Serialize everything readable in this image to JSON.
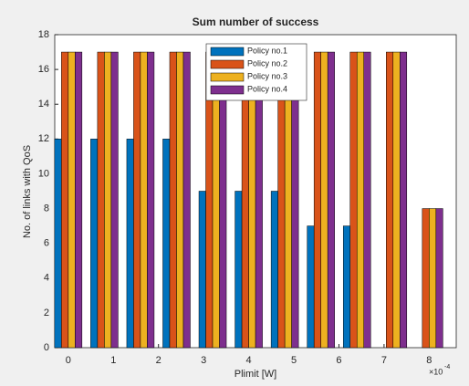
{
  "chart_data": {
    "type": "bar",
    "title": "Sum number of success",
    "xlabel": "Plimit [W]",
    "ylabel": "No. of links with QoS",
    "x_exponent": {
      "base": "×10",
      "power": "-4"
    },
    "x": [
      0,
      0.8,
      1.6,
      2.4,
      3.2,
      4.0,
      4.8,
      5.6,
      6.4,
      7.2,
      8.0
    ],
    "series": [
      {
        "name": "Policy no.1",
        "color": "#0072bd",
        "values": [
          12,
          12,
          12,
          12,
          9,
          9,
          9,
          7,
          7,
          0,
          0
        ]
      },
      {
        "name": "Policy no.2",
        "color": "#d95319",
        "values": [
          17,
          17,
          17,
          17,
          17,
          17,
          17,
          17,
          17,
          17,
          8
        ]
      },
      {
        "name": "Policy no.3",
        "color": "#edb120",
        "values": [
          17,
          17,
          17,
          17,
          17,
          17,
          17,
          17,
          17,
          17,
          8
        ]
      },
      {
        "name": "Policy no.4",
        "color": "#7e2f8e",
        "values": [
          17,
          17,
          17,
          17,
          17,
          17,
          17,
          17,
          17,
          17,
          8
        ]
      }
    ],
    "xlim": [
      -0.3,
      8.6
    ],
    "xticks": [
      0,
      1,
      2,
      3,
      4,
      5,
      6,
      7,
      8
    ],
    "ylim": [
      0,
      18
    ],
    "yticks": [
      0,
      2,
      4,
      6,
      8,
      10,
      12,
      14,
      16,
      18
    ],
    "legend": "top"
  }
}
